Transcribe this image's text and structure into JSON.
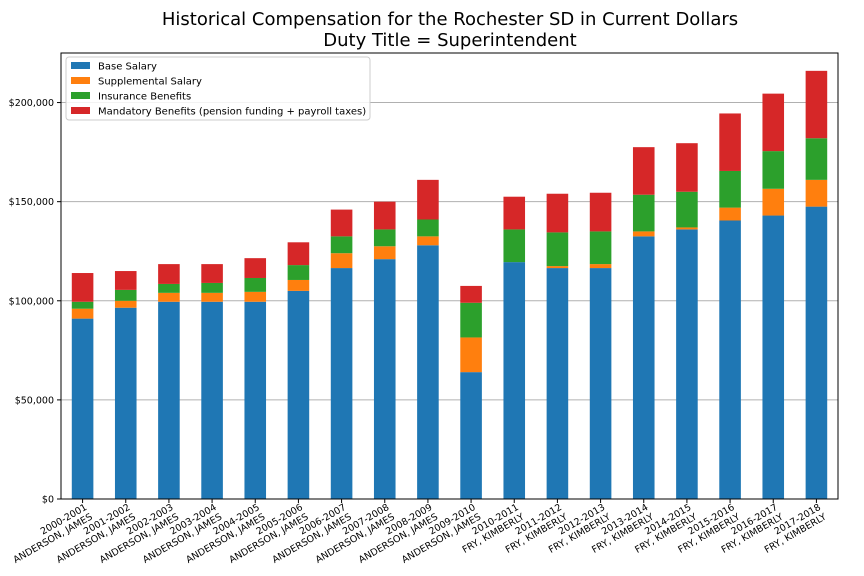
{
  "chart_data": {
    "type": "bar",
    "stacked": true,
    "title": "Historical Compensation for the Rochester SD in Current Dollars",
    "subtitle": "Duty Title = Superintendent",
    "xlabel": "",
    "ylabel": "",
    "ylim": [
      0,
      225000
    ],
    "yticks": [
      0,
      50000,
      100000,
      150000,
      200000
    ],
    "ytick_labels": [
      "$0",
      "$50,000",
      "$100,000",
      "$150,000",
      "$200,000"
    ],
    "grid": "horizontal",
    "legend_position": "top-left",
    "categories": [
      [
        "2000-2001",
        "ANDERSON, JAMES"
      ],
      [
        "2001-2002",
        "ANDERSON, JAMES"
      ],
      [
        "2002-2003",
        "ANDERSON, JAMES"
      ],
      [
        "2003-2004",
        "ANDERSON, JAMES"
      ],
      [
        "2004-2005",
        "ANDERSON, JAMES"
      ],
      [
        "2005-2006",
        "ANDERSON, JAMES"
      ],
      [
        "2006-2007",
        "ANDERSON, JAMES"
      ],
      [
        "2007-2008",
        "ANDERSON, JAMES"
      ],
      [
        "2008-2009",
        "ANDERSON, JAMES"
      ],
      [
        "2009-2010",
        "ANDERSON, JAMES"
      ],
      [
        "2010-2011",
        "FRY, KIMBERLY"
      ],
      [
        "2011-2012",
        "FRY, KIMBERLY"
      ],
      [
        "2012-2013",
        "FRY, KIMBERLY"
      ],
      [
        "2013-2014",
        "FRY, KIMBERLY"
      ],
      [
        "2014-2015",
        "FRY, KIMBERLY"
      ],
      [
        "2015-2016",
        "FRY, KIMBERLY"
      ],
      [
        "2016-2017",
        "FRY, KIMBERLY"
      ],
      [
        "2017-2018",
        "FRY, KIMBERLY"
      ]
    ],
    "series": [
      {
        "name": "Base Salary",
        "color": "#1f77b4",
        "values": [
          91000,
          96500,
          99500,
          99500,
          99500,
          105000,
          116500,
          121000,
          128000,
          64000,
          119500,
          116500,
          116500,
          132500,
          136000,
          140500,
          143000,
          147500
        ]
      },
      {
        "name": "Supplemental Salary",
        "color": "#ff7f0e",
        "values": [
          5000,
          3500,
          4500,
          4500,
          5000,
          5500,
          7500,
          6500,
          4500,
          17500,
          0,
          1000,
          2000,
          2500,
          1000,
          6500,
          13500,
          13500
        ]
      },
      {
        "name": "Insurance Benefits",
        "color": "#2ca02c",
        "values": [
          3500,
          5500,
          4500,
          5000,
          7000,
          7500,
          8500,
          8500,
          8500,
          17500,
          16500,
          17000,
          16500,
          18500,
          18000,
          18500,
          19000,
          21000
        ]
      },
      {
        "name": "Mandatory Benefits (pension funding + payroll taxes)",
        "color": "#d62728",
        "values": [
          14500,
          9500,
          10000,
          9500,
          10000,
          11500,
          13500,
          14000,
          20000,
          8500,
          16500,
          19500,
          19500,
          24000,
          24500,
          29000,
          29000,
          34000
        ]
      }
    ]
  }
}
